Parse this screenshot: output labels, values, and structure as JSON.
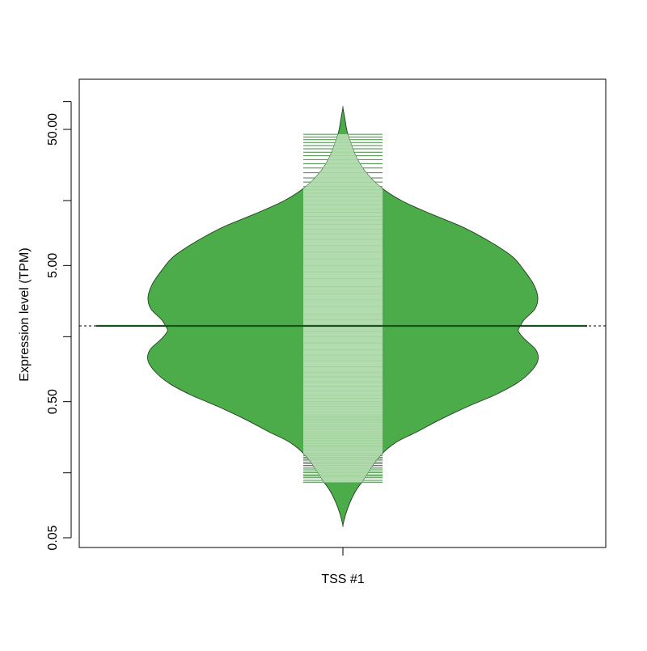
{
  "chart_data": {
    "type": "beanplot",
    "title": "",
    "xlabel": "",
    "ylabel": "Expression level (TPM)",
    "y_scale": "log10",
    "ylim": [
      0.04,
      80
    ],
    "y_tick_labels": [
      "0.05",
      "0.50",
      "5.00",
      "50.00"
    ],
    "y_tick_values": [
      0.05,
      0.5,
      5,
      50
    ],
    "y_minor_tick_values": [
      0.15,
      1.5,
      15
    ],
    "y_top_tick_value": 80,
    "categories": [
      "TSS #1"
    ],
    "overall_average": 1.8,
    "group_average": 1.8,
    "colors": {
      "bean_fill": "#4dac4a",
      "bean_outline": "#1f3f1f",
      "beanline": "#1b4f1b",
      "strip_light": "#b2dcaf",
      "strip_dark": "#3e8a3b",
      "overall_line": "#000000"
    },
    "density": [
      {
        "y": 0.062,
        "w": 0.0
      },
      {
        "y": 0.075,
        "w": 0.015
      },
      {
        "y": 0.09,
        "w": 0.035
      },
      {
        "y": 0.11,
        "w": 0.065
      },
      {
        "y": 0.13,
        "w": 0.1
      },
      {
        "y": 0.16,
        "w": 0.14
      },
      {
        "y": 0.2,
        "w": 0.19
      },
      {
        "y": 0.25,
        "w": 0.27
      },
      {
        "y": 0.3,
        "w": 0.38
      },
      {
        "y": 0.37,
        "w": 0.5
      },
      {
        "y": 0.46,
        "w": 0.64
      },
      {
        "y": 0.56,
        "w": 0.78
      },
      {
        "y": 0.68,
        "w": 0.89
      },
      {
        "y": 0.82,
        "w": 0.96
      },
      {
        "y": 1.0,
        "w": 1.0
      },
      {
        "y": 1.2,
        "w": 0.99
      },
      {
        "y": 1.45,
        "w": 0.93
      },
      {
        "y": 1.65,
        "w": 0.9
      },
      {
        "y": 1.8,
        "w": 0.91
      },
      {
        "y": 2.0,
        "w": 0.93
      },
      {
        "y": 2.4,
        "w": 0.985
      },
      {
        "y": 2.9,
        "w": 1.0
      },
      {
        "y": 3.6,
        "w": 0.98
      },
      {
        "y": 4.6,
        "w": 0.93
      },
      {
        "y": 5.8,
        "w": 0.87
      },
      {
        "y": 7.4,
        "w": 0.76
      },
      {
        "y": 9.5,
        "w": 0.62
      },
      {
        "y": 12,
        "w": 0.45
      },
      {
        "y": 15,
        "w": 0.3
      },
      {
        "y": 19,
        "w": 0.19
      },
      {
        "y": 24,
        "w": 0.12
      },
      {
        "y": 30,
        "w": 0.075
      },
      {
        "y": 38,
        "w": 0.045
      },
      {
        "y": 48,
        "w": 0.022
      },
      {
        "y": 60,
        "w": 0.01
      },
      {
        "y": 72,
        "w": 0.0
      }
    ],
    "observations": [
      0.128,
      0.132,
      0.138,
      0.142,
      0.145,
      0.15,
      0.155,
      0.16,
      0.165,
      0.17,
      0.175,
      0.18,
      0.186,
      0.19,
      0.195,
      0.2,
      0.205,
      0.21,
      0.218,
      0.225,
      0.232,
      0.238,
      0.245,
      0.252,
      0.26,
      0.268,
      0.275,
      0.282,
      0.29,
      0.3,
      0.31,
      0.32,
      0.33,
      0.34,
      0.35,
      0.36,
      0.37,
      0.38,
      0.39,
      0.4,
      0.42,
      0.44,
      0.46,
      0.48,
      0.5,
      0.53,
      0.56,
      0.6,
      0.65,
      0.7,
      0.76,
      0.82,
      0.9,
      1.0,
      1.1,
      1.2,
      1.35,
      1.5,
      1.65,
      1.8,
      2.0,
      2.2,
      2.5,
      2.8,
      3.1,
      3.5,
      4.0,
      4.5,
      5.0,
      5.6,
      6.3,
      7.0,
      7.8,
      8.5,
      9.2,
      10.0,
      10.8,
      11.5,
      12.3,
      13.0,
      14.0,
      15.0,
      16.0,
      17.0,
      18.0,
      19.0,
      20.5,
      22.0,
      24.0,
      26.0,
      28.0,
      30.0,
      32.0,
      34.0,
      36.0,
      38.0,
      40.0,
      42.0,
      44.0,
      46.0
    ]
  }
}
